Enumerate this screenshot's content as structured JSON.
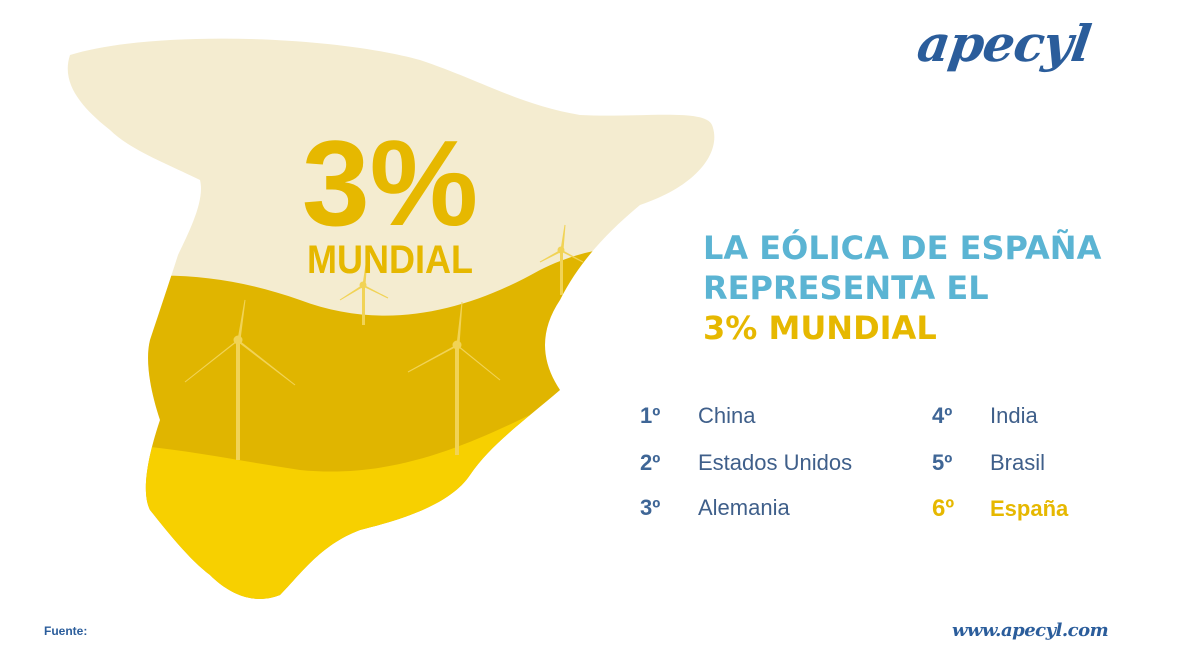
{
  "logo": {
    "text": "apecyl"
  },
  "map": {
    "big_value": "3%",
    "big_label": "MUNDIAL",
    "colors": {
      "cream": "#f4ecd0",
      "mustard": "#e0b500",
      "yellow": "#f7d000"
    }
  },
  "headline": {
    "line1": "LA EÓLICA DE ESPAÑA",
    "line2": "REPRESENTA EL",
    "line3": "3% MUNDIAL"
  },
  "ranking": [
    {
      "pos": "1º",
      "name": "China"
    },
    {
      "pos": "2º",
      "name": "Estados Unidos"
    },
    {
      "pos": "3º",
      "name": "Alemania"
    },
    {
      "pos": "4º",
      "name": "India"
    },
    {
      "pos": "5º",
      "name": "Brasil"
    },
    {
      "pos": "6º",
      "name": "España"
    }
  ],
  "footer": {
    "source_label": "Fuente:",
    "website": "www.apecyl.com"
  },
  "colors": {
    "blue": "#2b5d9b",
    "light_blue": "#5bb4d3",
    "gold": "#e6b800"
  }
}
